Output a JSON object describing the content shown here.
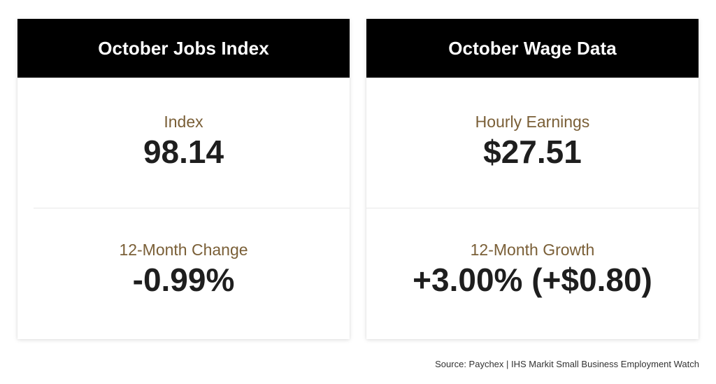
{
  "cards": [
    {
      "title": "October Jobs Index",
      "top": {
        "label": "Index",
        "value": "98.14"
      },
      "bottom": {
        "label": "12-Month Change",
        "value": "-0.99%"
      }
    },
    {
      "title": "October Wage Data",
      "top": {
        "label": "Hourly Earnings",
        "value": "$27.51"
      },
      "bottom": {
        "label": "12-Month Growth",
        "value": "+3.00% (+$0.80)"
      }
    }
  ],
  "source": "Source: Paychex | IHS Markit Small Business Employment Watch",
  "colors": {
    "header_bg": "#000000",
    "label": "#7a5f37",
    "value": "#1e1e1e"
  }
}
